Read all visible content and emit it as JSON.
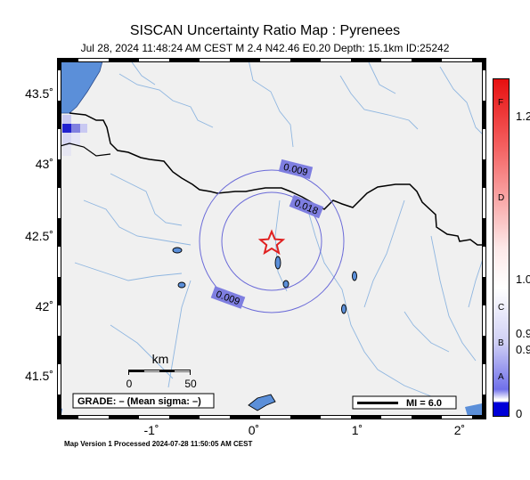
{
  "title": "SISCAN Uncertainty Ratio Map : Pyrenees",
  "subtitle": "Jul 28, 2024 11:48:24 AM CEST    M 2.4    N42.46 E0.20    Depth: 15.1km    ID:25242",
  "footer": "Map Version 1 Processed 2024-07-28 11:50:05 AM CEST",
  "map": {
    "lat_range": [
      41.2,
      43.7
    ],
    "lon_range": [
      -1.85,
      2.25
    ],
    "lat_ticks": [
      "43.5˚",
      "43˚",
      "42.5˚",
      "42˚",
      "41.5˚"
    ],
    "lon_ticks": [
      "-1˚",
      "0˚",
      "1˚",
      "2˚"
    ],
    "epicenter": {
      "lat": 42.46,
      "lon": 0.2,
      "icon": "star-icon"
    },
    "contours": [
      {
        "label": "0.009"
      },
      {
        "label": "0.018"
      },
      {
        "label": "0.009"
      }
    ],
    "colors": {
      "land": "#f0f0f0",
      "water": "#5b8fd9",
      "river": "#8fb6e0",
      "border": "#000000",
      "contour": "#6a6ad8",
      "epicenter": "#e02020"
    }
  },
  "scalebar": {
    "title": "km",
    "start": "0",
    "end": "50"
  },
  "grade_box": "GRADE: – (Mean sigma: –)",
  "mi_box": "MI = 6.0",
  "colorbar": {
    "values": [
      "1.2",
      "1.0",
      "0.9",
      "0.9",
      "0"
    ],
    "grades": [
      "F",
      "D",
      "C",
      "B",
      "A"
    ]
  }
}
